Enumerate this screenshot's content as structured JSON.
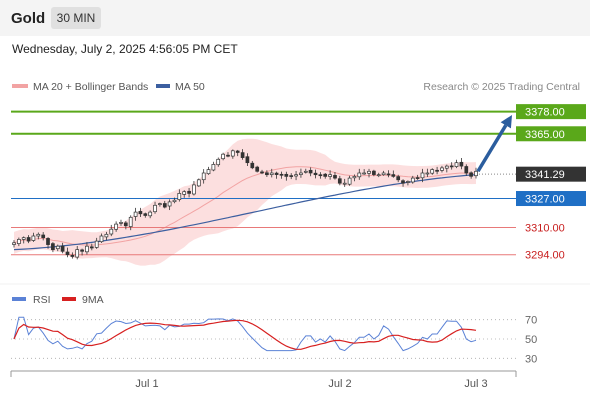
{
  "header": {
    "instrument": "Gold",
    "timeframe": "30 MIN"
  },
  "datetime": "Wednesday, July 2, 2025 4:56:05 PM CET",
  "legend": {
    "bollinger": "MA 20 + Bollinger Bands",
    "ma50": "MA 50",
    "credit": "Research © 2025 Trading Central"
  },
  "rsi_legend": {
    "rsi": "RSI",
    "ma": "9MA"
  },
  "colors": {
    "resistance": "#5aa81a",
    "support": "#e87979",
    "current": "#333333",
    "pivot": "#1f6fc5",
    "ma50": "#3c5fa0",
    "bollinger": "#f2a3a3",
    "rsi": "#5b82d6",
    "rsi_ma": "#d72020"
  },
  "chart_data": [
    {
      "type": "candlestick",
      "x_ticks": [
        "Jul 1",
        "Jul 2",
        "Jul 3"
      ],
      "ylim": [
        3278,
        3386
      ],
      "levels": [
        {
          "label": "3378.00",
          "value": 3378.0,
          "kind": "resistance"
        },
        {
          "label": "3365.00",
          "value": 3365.0,
          "kind": "resistance"
        },
        {
          "label": "3341.29",
          "value": 3341.29,
          "kind": "current"
        },
        {
          "label": "3327.00",
          "value": 3327.0,
          "kind": "pivot"
        },
        {
          "label": "3310.00",
          "value": 3310.0,
          "kind": "support"
        },
        {
          "label": "3294.00",
          "value": 3294.0,
          "kind": "support"
        }
      ],
      "close": [
        3301,
        3303,
        3304,
        3302,
        3305,
        3306,
        3304,
        3300,
        3297,
        3299,
        3296,
        3294,
        3293,
        3297,
        3296,
        3299,
        3298,
        3302,
        3305,
        3306,
        3309,
        3312,
        3313,
        3311,
        3316,
        3319,
        3318,
        3317,
        3319,
        3323,
        3324,
        3322,
        3325,
        3326,
        3330,
        3331,
        3330,
        3335,
        3338,
        3342,
        3344,
        3347,
        3350,
        3353,
        3352,
        3355,
        3354,
        3351,
        3348,
        3345,
        3343,
        3342,
        3341,
        3342,
        3341,
        3341,
        3340,
        3340,
        3341,
        3342,
        3343,
        3342,
        3341,
        3341,
        3340,
        3341,
        3339,
        3336,
        3336,
        3339,
        3340,
        3342,
        3342,
        3343,
        3341,
        3341,
        3342,
        3341,
        3340,
        3338,
        3336,
        3337,
        3339,
        3339,
        3342,
        3342,
        3344,
        3343,
        3345,
        3346,
        3346,
        3348,
        3346,
        3342,
        3340,
        3343
      ],
      "projection": {
        "from": 3343,
        "to": 3376
      },
      "ma50_start": 3297,
      "ma50_end": 3341
    },
    {
      "type": "line",
      "title": "RSI",
      "ylim": [
        20,
        80
      ],
      "y_ticks": [
        70,
        50,
        30
      ]
    }
  ]
}
